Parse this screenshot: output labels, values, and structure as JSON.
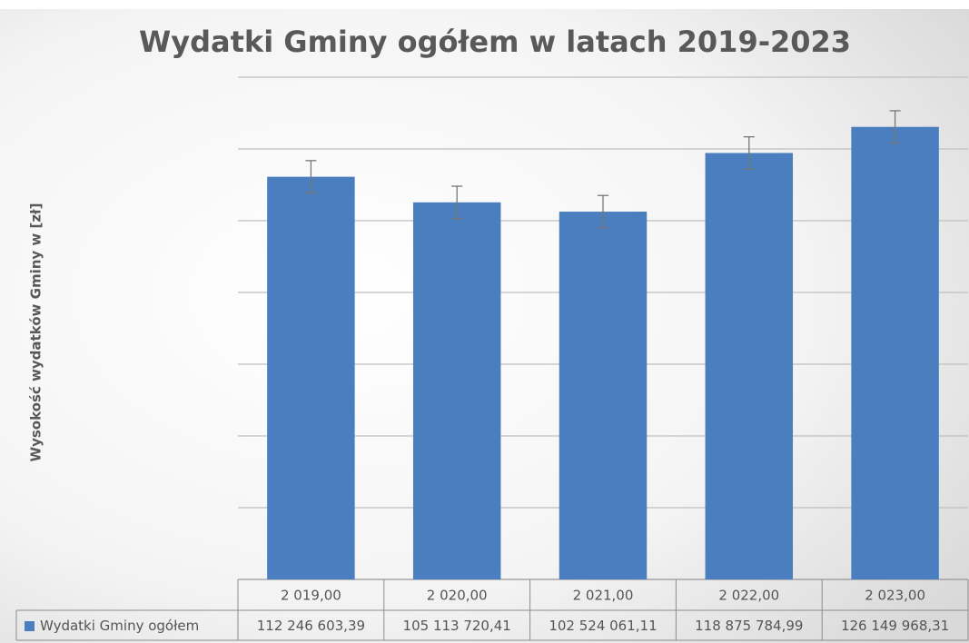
{
  "chart_data": {
    "type": "bar",
    "title": "Wydatki Gminy ogółem w latach 2019-2023",
    "y_label": "Wysokość wydatków Gminy w [zł]",
    "categories": [
      "2 019,00",
      "2 020,00",
      "2 021,00",
      "2 022,00",
      "2 023,00"
    ],
    "series": [
      {
        "name": "Wydatki Gminy ogółem",
        "color": "#4a7ebf",
        "values": [
          112246603.39,
          105113720.41,
          102524061.11,
          118875784.99,
          126149968.31
        ],
        "value_labels": [
          "112 246 603,39",
          "105 113 720,41",
          "102 524 061,11",
          "118 875 784,99",
          "126 149 968,31"
        ],
        "errors": [
          4500000,
          4500000,
          4500000,
          4500000,
          4500000
        ]
      }
    ],
    "ylim": [
      0,
      140000000
    ],
    "yticks": [
      0,
      20000000,
      40000000,
      60000000,
      80000000,
      100000000,
      120000000,
      140000000
    ],
    "grid": true
  }
}
